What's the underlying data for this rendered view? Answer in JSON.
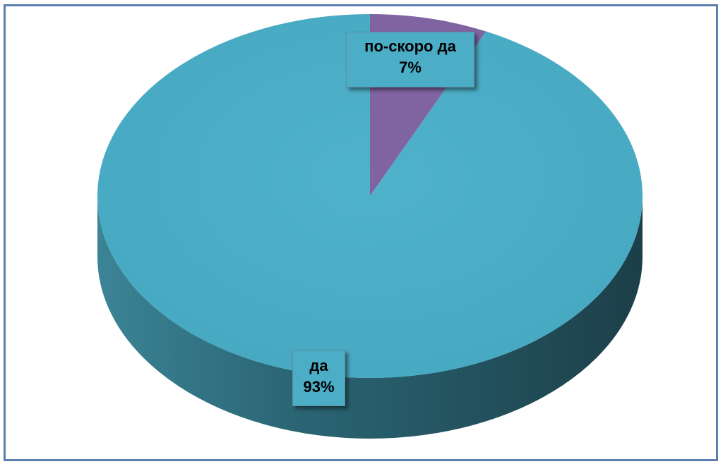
{
  "chart_data": {
    "type": "pie",
    "title": "",
    "slices": [
      {
        "label": "по-скоро да",
        "value": 7,
        "display": "7%",
        "color": "#8064a2"
      },
      {
        "label": "да",
        "value": 93,
        "display": "93%",
        "color": "#4bacc6"
      }
    ],
    "style": "3d-pie",
    "legend": "none",
    "border_color": "#5b7fae"
  }
}
